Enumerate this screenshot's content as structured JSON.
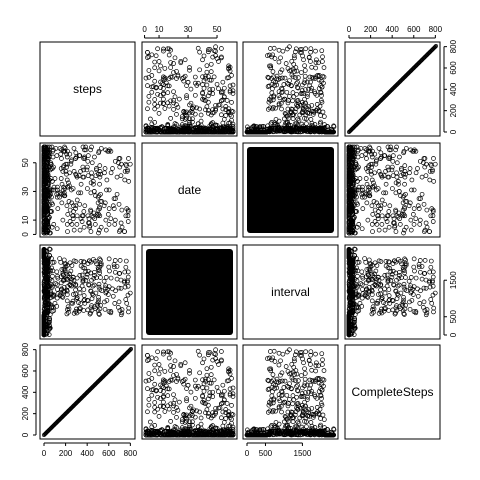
{
  "chart_data": {
    "type": "scatter",
    "variables": [
      "steps",
      "date",
      "interval",
      "CompleteSteps"
    ],
    "ranges": {
      "steps": [
        0,
        806
      ],
      "date": [
        1,
        61
      ],
      "interval": [
        0,
        2355
      ],
      "CompleteSteps": [
        0,
        806
      ]
    },
    "axis_ticks": {
      "steps": [
        0,
        200,
        400,
        600,
        800
      ],
      "date": [
        0,
        10,
        30,
        50
      ],
      "interval": [
        0,
        500,
        1500
      ],
      "CompleteSteps": [
        0,
        200,
        400,
        600,
        800
      ]
    },
    "tick_labels": {
      "top": [
        "0",
        "10",
        "30",
        "50",
        "0",
        "200",
        "400",
        "600",
        "800"
      ],
      "right": [
        "0",
        "200",
        "400",
        "600",
        "800",
        "0",
        "500",
        "1500"
      ],
      "left": [
        "0",
        "10",
        "30",
        "50",
        "0",
        "200",
        "400",
        "600",
        "800"
      ],
      "bottom": [
        "0",
        "200",
        "400",
        "600",
        "800",
        "0",
        "500",
        "1500"
      ]
    },
    "grid": false,
    "legend": "none"
  }
}
